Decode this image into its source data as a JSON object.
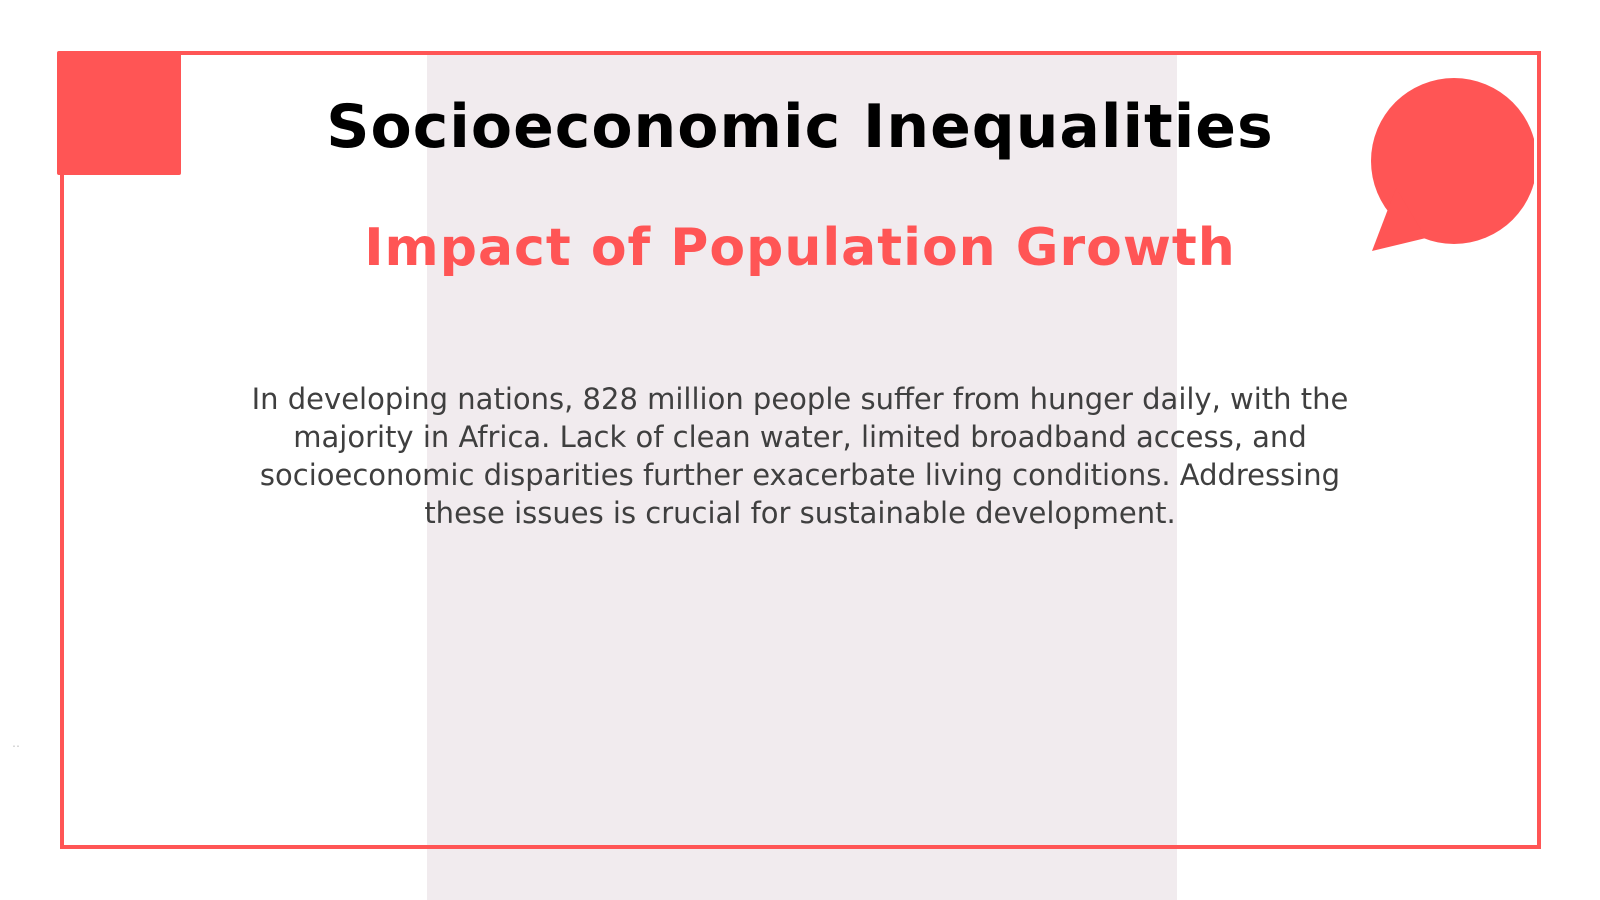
{
  "slide": {
    "title": "Socioeconomic Inequalities",
    "subtitle": "Impact of Population Growth",
    "body": "In developing nations, 828 million people suffer from hunger daily, with the majority in Africa. Lack of clean water, limited broadband access, and socioeconomic disparities further exacerbate living conditions. Addressing these issues is crucial for sustainable development.",
    "tiny_mark": "˙˙"
  },
  "colors": {
    "accent": "#ff5555",
    "band": "#f1ebee",
    "title": "#000000",
    "body": "#3f3f3f"
  },
  "icons": {
    "corner": "square-decoration",
    "bubble": "speech-bubble-icon"
  }
}
